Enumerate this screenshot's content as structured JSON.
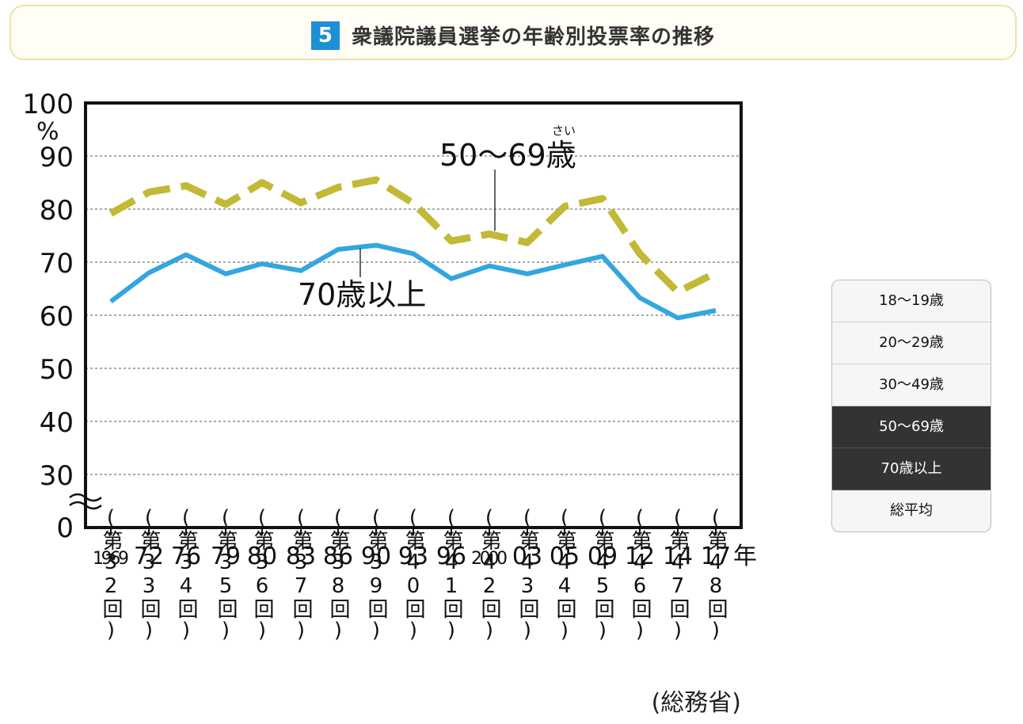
{
  "badge": "5",
  "title": "衆議院議員選挙の年齢別投票率の推移",
  "source": "(総務省)",
  "legend": {
    "items": [
      {
        "label": "18～19歳",
        "active": false
      },
      {
        "label": "20～29歳",
        "active": false
      },
      {
        "label": "30～49歳",
        "active": false
      },
      {
        "label": "50～69歳",
        "active": true
      },
      {
        "label": "70歳以上",
        "active": true
      },
      {
        "label": "総平均",
        "active": false
      }
    ]
  },
  "colors": {
    "series_50_69": "#c2b936",
    "series_70": "#33a6de"
  },
  "chart_data": {
    "type": "line",
    "title": "衆議院議員選挙の年齢別投票率の推移",
    "ylabel": "%",
    "ylim": [
      30,
      100
    ],
    "yaxis_break_label": "0",
    "yticks": [
      "100",
      "90",
      "80",
      "70",
      "60",
      "50",
      "40",
      "30"
    ],
    "year_unit": "年",
    "x": [
      "1969",
      "72",
      "76",
      "79",
      "80",
      "83",
      "86",
      "90",
      "93",
      "96",
      "2000",
      "03",
      "05",
      "09",
      "12",
      "14",
      "17"
    ],
    "election_labels": [
      "第32回",
      "第33回",
      "第34回",
      "第35回",
      "第36回",
      "第37回",
      "第38回",
      "第39回",
      "第40回",
      "第41回",
      "第42回",
      "第43回",
      "第44回",
      "第45回",
      "第46回",
      "第47回",
      "第48回"
    ],
    "grid": true,
    "series": [
      {
        "name": "50～69歳",
        "ruby": "さい",
        "values": [
          79.2,
          83.2,
          84.4,
          80.9,
          85.0,
          81.2,
          84.1,
          85.5,
          81.1,
          74.0,
          75.3,
          73.7,
          80.5,
          82.0,
          71.6,
          64.4,
          68.0
        ]
      },
      {
        "name": "70歳以上",
        "values": [
          62.6,
          68.0,
          71.4,
          67.8,
          69.7,
          68.4,
          72.4,
          73.2,
          71.6,
          66.9,
          69.3,
          67.8,
          69.5,
          71.1,
          63.3,
          59.5,
          60.9
        ]
      }
    ]
  }
}
